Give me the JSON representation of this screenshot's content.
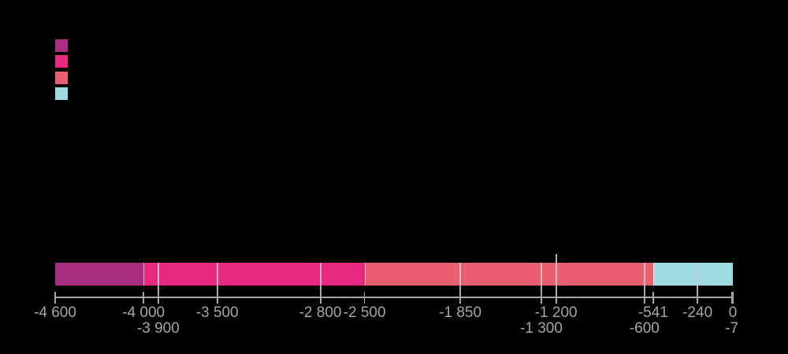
{
  "background_color": "#000000",
  "legend": {
    "swatches": [
      {
        "color": "#a82d80"
      },
      {
        "color": "#e7297f"
      },
      {
        "color": "#e95f70"
      },
      {
        "color": "#9fd9e1"
      }
    ]
  },
  "chart_data": {
    "type": "bar",
    "subtype": "horizontal-stacked-timeline",
    "x_range": [
      -4600,
      0
    ],
    "grid": false,
    "legend_position": "top-left",
    "axis_color": "#a5a5a5",
    "label_color": "#a5a5a5",
    "segment_divider_color": "rgba(255,255,255,0.6)",
    "marker_line_color": "rgba(204,204,204,0.85)",
    "segments": [
      {
        "from": -4600,
        "to": -4000,
        "color": "#a82d80"
      },
      {
        "from": -4000,
        "to": -2500,
        "color": "#e7297f"
      },
      {
        "from": -2500,
        "to": -541,
        "color": "#e95f70"
      },
      {
        "from": -541,
        "to": 0,
        "color": "#9fd9e1"
      }
    ],
    "marker_lines": [
      {
        "value": -3900
      },
      {
        "value": -3500
      },
      {
        "value": -2800
      },
      {
        "value": -1850
      },
      {
        "value": -1300
      },
      {
        "value": -1200,
        "extends_above": true
      },
      {
        "value": -600
      },
      {
        "value": -240
      }
    ],
    "ticks": [
      {
        "value": -4600,
        "label": "-4 600",
        "row": 1
      },
      {
        "value": -4000,
        "label": "-4 000",
        "row": 1
      },
      {
        "value": -3900,
        "label": "-3 900",
        "row": 2
      },
      {
        "value": -3500,
        "label": "-3 500",
        "row": 1
      },
      {
        "value": -2800,
        "label": "-2 800",
        "row": 1
      },
      {
        "value": -2500,
        "label": "-2 500",
        "row": 1
      },
      {
        "value": -1850,
        "label": "-1 850",
        "row": 1
      },
      {
        "value": -1300,
        "label": "-1 300",
        "row": 2
      },
      {
        "value": -1200,
        "label": "-1 200",
        "row": 1
      },
      {
        "value": -600,
        "label": "-600",
        "row": 2
      },
      {
        "value": -541,
        "label": "-541",
        "row": 1
      },
      {
        "value": -240,
        "label": "-240",
        "row": 1
      },
      {
        "value": -7,
        "label": "-7",
        "row": 2
      },
      {
        "value": 0,
        "label": "0",
        "row": 1
      }
    ]
  }
}
